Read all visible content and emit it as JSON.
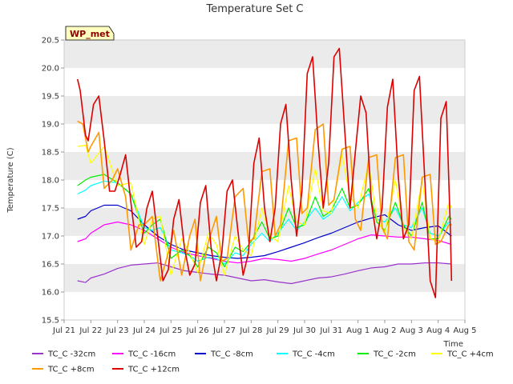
{
  "chart_data": {
    "type": "line",
    "title": "Temperature Set C",
    "xlabel": "Time",
    "ylabel": "Temperature (C)",
    "station_badge": "WP_met",
    "ylim": [
      15.5,
      20.5
    ],
    "y_ticks": [
      15.5,
      16.0,
      16.5,
      17.0,
      17.5,
      18.0,
      18.5,
      19.0,
      19.5,
      20.0,
      20.5
    ],
    "x_ticks": [
      {
        "label": "Jul 21",
        "day": 0
      },
      {
        "label": "Jul 22",
        "day": 1
      },
      {
        "label": "Jul 23",
        "day": 2
      },
      {
        "label": "Jul 24",
        "day": 3
      },
      {
        "label": "Jul 25",
        "day": 4
      },
      {
        "label": "Jul 26",
        "day": 5
      },
      {
        "label": "Jul 27",
        "day": 6
      },
      {
        "label": "Jul 28",
        "day": 7
      },
      {
        "label": "Jul 29",
        "day": 8
      },
      {
        "label": "Jul 30",
        "day": 9
      },
      {
        "label": "Jul 31",
        "day": 10
      },
      {
        "label": "Aug 1",
        "day": 11
      },
      {
        "label": "Aug 2",
        "day": 12
      },
      {
        "label": "Aug 3",
        "day": 13
      },
      {
        "label": "Aug 4",
        "day": 14
      },
      {
        "label": "Aug 5",
        "day": 15
      }
    ],
    "xlim_days": [
      0,
      15
    ],
    "grid": "horizontal bands",
    "legend_position": "bottom",
    "series": [
      {
        "name": "TC_C -32cm",
        "color": "#9933cc",
        "x": [
          0.5,
          0.8,
          1.0,
          1.5,
          2.0,
          2.5,
          3.0,
          3.5,
          4.0,
          4.5,
          5.0,
          5.5,
          6.0,
          6.5,
          7.0,
          7.5,
          8.0,
          8.5,
          9.0,
          9.5,
          10.0,
          10.5,
          11.0,
          11.5,
          12.0,
          12.5,
          13.0,
          13.5,
          14.0,
          14.5
        ],
        "y": [
          16.2,
          16.17,
          16.25,
          16.32,
          16.42,
          16.48,
          16.5,
          16.52,
          16.45,
          16.38,
          16.35,
          16.32,
          16.3,
          16.25,
          16.2,
          16.22,
          16.18,
          16.15,
          16.2,
          16.25,
          16.27,
          16.32,
          16.38,
          16.43,
          16.45,
          16.5,
          16.5,
          16.52,
          16.52,
          16.5
        ]
      },
      {
        "name": "TC_C -16cm",
        "color": "#ff00ff",
        "x": [
          0.5,
          0.8,
          1.0,
          1.5,
          2.0,
          2.5,
          3.0,
          3.5,
          4.0,
          4.5,
          5.0,
          5.5,
          6.0,
          6.5,
          7.0,
          7.5,
          8.0,
          8.5,
          9.0,
          9.5,
          10.0,
          10.5,
          11.0,
          11.5,
          12.0,
          12.5,
          13.0,
          13.5,
          14.0,
          14.5
        ],
        "y": [
          16.9,
          16.95,
          17.05,
          17.2,
          17.25,
          17.2,
          17.1,
          16.95,
          16.8,
          16.7,
          16.65,
          16.6,
          16.55,
          16.52,
          16.55,
          16.6,
          16.58,
          16.55,
          16.6,
          16.68,
          16.75,
          16.85,
          16.95,
          17.02,
          17.0,
          16.98,
          16.98,
          16.95,
          16.92,
          16.85
        ]
      },
      {
        "name": "TC_C -8cm",
        "color": "#0000cc",
        "x": [
          0.5,
          0.8,
          1.0,
          1.5,
          2.0,
          2.5,
          3.0,
          3.5,
          4.0,
          4.5,
          5.0,
          5.5,
          6.0,
          6.5,
          7.0,
          7.5,
          8.0,
          8.5,
          9.0,
          9.5,
          10.0,
          10.5,
          11.0,
          11.5,
          12.0,
          12.5,
          13.0,
          13.5,
          14.0,
          14.5
        ],
        "y": [
          17.3,
          17.35,
          17.45,
          17.55,
          17.55,
          17.45,
          17.2,
          17.0,
          16.85,
          16.75,
          16.7,
          16.65,
          16.62,
          16.6,
          16.62,
          16.65,
          16.72,
          16.8,
          16.88,
          16.97,
          17.05,
          17.15,
          17.25,
          17.32,
          17.38,
          17.2,
          17.1,
          17.15,
          17.18,
          17.0
        ]
      },
      {
        "name": "TC_C -4cm",
        "color": "#00ffff",
        "x": [
          0.5,
          0.8,
          1.0,
          1.5,
          2.0,
          2.5,
          3.0,
          3.3,
          3.6,
          4.0,
          4.4,
          4.7,
          5.0,
          5.4,
          5.7,
          6.0,
          6.4,
          6.7,
          7.0,
          7.4,
          7.7,
          8.0,
          8.4,
          8.7,
          9.0,
          9.4,
          9.7,
          10.0,
          10.4,
          10.7,
          11.0,
          11.4,
          11.7,
          12.0,
          12.4,
          12.7,
          13.0,
          13.4,
          13.7,
          14.0,
          14.4,
          14.5
        ],
        "y": [
          17.75,
          17.82,
          17.9,
          17.98,
          17.95,
          17.75,
          17.15,
          17.1,
          17.15,
          16.75,
          16.7,
          16.65,
          16.55,
          16.62,
          16.6,
          16.5,
          16.7,
          16.65,
          16.85,
          17.05,
          16.9,
          17.05,
          17.3,
          17.1,
          17.25,
          17.5,
          17.3,
          17.4,
          17.7,
          17.45,
          17.6,
          17.75,
          17.3,
          17.25,
          17.5,
          17.2,
          17.15,
          17.5,
          17.05,
          17.0,
          17.25,
          17.2
        ]
      },
      {
        "name": "TC_C -2cm",
        "color": "#00ee00",
        "x": [
          0.5,
          0.8,
          1.0,
          1.5,
          2.0,
          2.5,
          3.0,
          3.3,
          3.6,
          4.0,
          4.4,
          4.7,
          5.0,
          5.4,
          5.7,
          6.0,
          6.4,
          6.7,
          7.0,
          7.4,
          7.7,
          8.0,
          8.4,
          8.7,
          9.0,
          9.4,
          9.7,
          10.0,
          10.4,
          10.7,
          11.0,
          11.4,
          11.7,
          12.0,
          12.4,
          12.7,
          13.0,
          13.4,
          13.7,
          14.0,
          14.4,
          14.5
        ],
        "y": [
          17.9,
          18.0,
          18.05,
          18.1,
          17.95,
          17.75,
          17.05,
          17.2,
          17.3,
          16.6,
          16.75,
          16.65,
          16.45,
          16.8,
          16.7,
          16.45,
          16.8,
          16.72,
          16.9,
          17.25,
          16.95,
          17.0,
          17.5,
          17.15,
          17.2,
          17.7,
          17.35,
          17.45,
          17.85,
          17.5,
          17.55,
          17.85,
          17.25,
          17.1,
          17.6,
          17.2,
          17.0,
          17.6,
          16.95,
          16.95,
          17.35,
          17.3
        ]
      },
      {
        "name": "TC_C +4cm",
        "color": "#ffff00",
        "x": [
          0.5,
          0.8,
          1.0,
          1.5,
          2.0,
          2.5,
          3.0,
          3.3,
          3.6,
          4.0,
          4.4,
          4.7,
          5.0,
          5.4,
          5.7,
          6.0,
          6.4,
          6.7,
          7.0,
          7.4,
          7.7,
          8.0,
          8.4,
          8.7,
          9.0,
          9.4,
          9.7,
          10.0,
          10.4,
          10.7,
          11.0,
          11.4,
          11.7,
          12.0,
          12.4,
          12.7,
          13.0,
          13.4,
          13.7,
          14.0,
          14.4,
          14.5
        ],
        "y": [
          18.6,
          18.62,
          18.3,
          18.6,
          17.9,
          17.95,
          16.85,
          17.3,
          17.35,
          16.3,
          16.95,
          16.7,
          16.35,
          17.05,
          16.85,
          16.3,
          17.0,
          16.75,
          16.65,
          17.5,
          17.0,
          16.9,
          17.9,
          17.25,
          17.2,
          18.2,
          17.45,
          17.4,
          18.45,
          17.7,
          17.5,
          18.3,
          17.3,
          17.05,
          18.0,
          17.15,
          16.95,
          18.0,
          16.95,
          16.9,
          17.6,
          17.5
        ]
      },
      {
        "name": "TC_C +8cm",
        "color": "#ff9900",
        "x": [
          0.5,
          0.7,
          0.9,
          1.0,
          1.3,
          1.5,
          1.8,
          2.0,
          2.3,
          2.5,
          2.8,
          3.0,
          3.3,
          3.6,
          3.9,
          4.1,
          4.4,
          4.7,
          4.9,
          5.1,
          5.4,
          5.7,
          5.9,
          6.1,
          6.4,
          6.7,
          6.9,
          7.1,
          7.4,
          7.7,
          7.9,
          8.1,
          8.4,
          8.7,
          8.9,
          9.1,
          9.4,
          9.7,
          9.9,
          10.1,
          10.4,
          10.7,
          10.9,
          11.1,
          11.4,
          11.7,
          11.9,
          12.1,
          12.4,
          12.7,
          12.9,
          13.1,
          13.4,
          13.7,
          13.9,
          14.1,
          14.4,
          14.5
        ],
        "y": [
          19.05,
          19.0,
          18.5,
          18.6,
          18.85,
          17.85,
          18.0,
          18.2,
          17.7,
          16.75,
          17.2,
          17.2,
          17.35,
          16.2,
          16.7,
          17.1,
          16.3,
          17.0,
          17.3,
          16.2,
          16.9,
          17.35,
          16.55,
          16.6,
          17.7,
          17.85,
          16.9,
          16.95,
          18.15,
          18.2,
          17.0,
          17.2,
          18.7,
          18.75,
          17.4,
          17.5,
          18.9,
          19.0,
          17.55,
          17.65,
          18.55,
          18.6,
          17.3,
          17.1,
          18.4,
          18.45,
          17.15,
          16.95,
          18.4,
          18.45,
          16.9,
          16.75,
          18.05,
          18.1,
          16.85,
          16.9,
          17.2,
          17.2
        ]
      },
      {
        "name": "TC_C +12cm",
        "color": "#dd0000",
        "x": [
          0.5,
          0.6,
          0.8,
          0.9,
          1.1,
          1.3,
          1.5,
          1.7,
          1.9,
          2.1,
          2.3,
          2.5,
          2.7,
          2.9,
          3.1,
          3.3,
          3.5,
          3.7,
          3.9,
          4.1,
          4.3,
          4.5,
          4.7,
          4.9,
          5.1,
          5.3,
          5.5,
          5.7,
          5.9,
          6.1,
          6.3,
          6.5,
          6.7,
          6.9,
          7.1,
          7.3,
          7.5,
          7.7,
          7.9,
          8.1,
          8.3,
          8.5,
          8.7,
          8.9,
          9.1,
          9.3,
          9.5,
          9.7,
          9.9,
          10.1,
          10.3,
          10.5,
          10.7,
          10.9,
          11.1,
          11.3,
          11.5,
          11.7,
          11.9,
          12.1,
          12.3,
          12.5,
          12.7,
          12.9,
          13.1,
          13.3,
          13.5,
          13.7,
          13.9,
          14.1,
          14.3,
          14.45,
          14.5
        ],
        "y": [
          19.8,
          19.6,
          18.8,
          18.7,
          19.35,
          19.5,
          18.7,
          17.8,
          17.8,
          18.1,
          18.45,
          17.6,
          16.8,
          16.9,
          17.5,
          17.8,
          17.0,
          16.2,
          16.4,
          17.3,
          17.65,
          16.8,
          16.3,
          16.5,
          17.6,
          17.9,
          16.8,
          16.2,
          16.7,
          17.8,
          18.0,
          17.1,
          16.3,
          16.7,
          18.3,
          18.75,
          17.5,
          16.9,
          17.5,
          19.0,
          19.35,
          18.0,
          17.0,
          17.8,
          19.9,
          20.2,
          18.7,
          17.5,
          18.3,
          20.2,
          20.35,
          18.9,
          17.5,
          18.5,
          19.5,
          19.2,
          17.6,
          16.95,
          17.5,
          19.3,
          19.8,
          18.1,
          16.95,
          17.2,
          19.6,
          19.85,
          18.0,
          16.2,
          15.9,
          19.1,
          19.4,
          17.2,
          16.2
        ]
      }
    ]
  }
}
